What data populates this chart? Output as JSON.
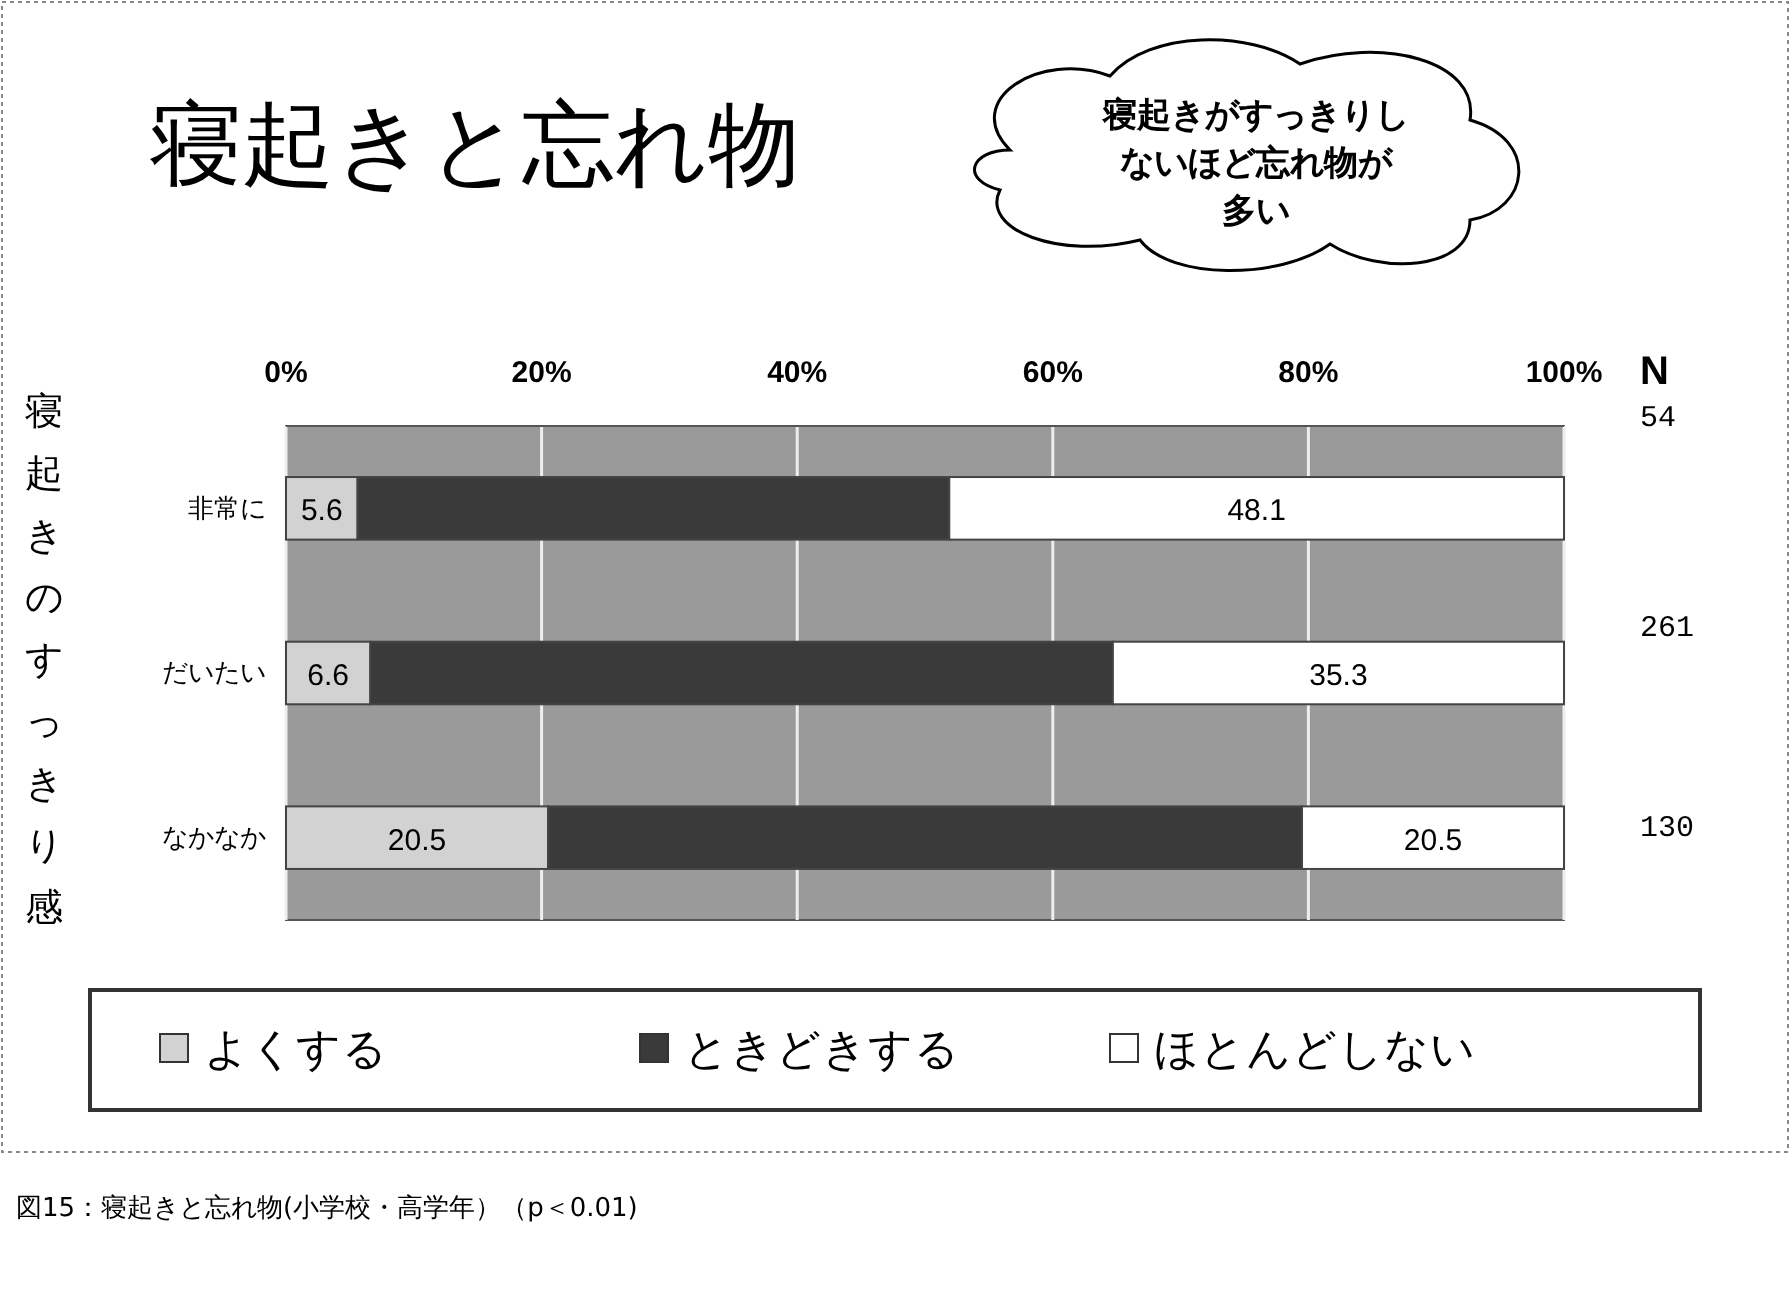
{
  "chart_data": {
    "type": "bar",
    "orientation": "horizontal",
    "stacked": true,
    "title": "寝起きと忘れ物",
    "ylabel": "寝起きのすっきり感",
    "categories": [
      "非常に",
      "だいたい",
      "なかなか"
    ],
    "series": [
      {
        "name": "よくする",
        "color": "#d2d2d2",
        "values": [
          5.6,
          6.6,
          20.5
        ],
        "value_labels": [
          "5.6",
          "6.6",
          "20.5"
        ]
      },
      {
        "name": "ときどきする",
        "color": "#3a3a3a",
        "values": [
          46.3,
          58.1,
          59.0
        ],
        "value_labels": [
          null,
          null,
          null
        ]
      },
      {
        "name": "ほとんどしない",
        "color": "#ffffff",
        "values": [
          48.1,
          35.3,
          20.5
        ],
        "value_labels": [
          "48.1",
          "35.3",
          "20.5"
        ]
      }
    ],
    "xlim": [
      0,
      100
    ],
    "xticks": [
      {
        "value": 0,
        "label": "0%"
      },
      {
        "value": 20,
        "label": "20%"
      },
      {
        "value": 40,
        "label": "40%"
      },
      {
        "value": 60,
        "label": "60%"
      },
      {
        "value": 80,
        "label": "80%"
      },
      {
        "value": 100,
        "label": "100%"
      }
    ],
    "grid": "x",
    "legend": "bottom",
    "annotations": [
      "寝起きがすっきりしないほど忘れ物が多い",
      "N",
      "54",
      "261",
      "130",
      "図15：寝起きと忘れ物(小学校・高学年）（p＜0.01)"
    ]
  }
}
